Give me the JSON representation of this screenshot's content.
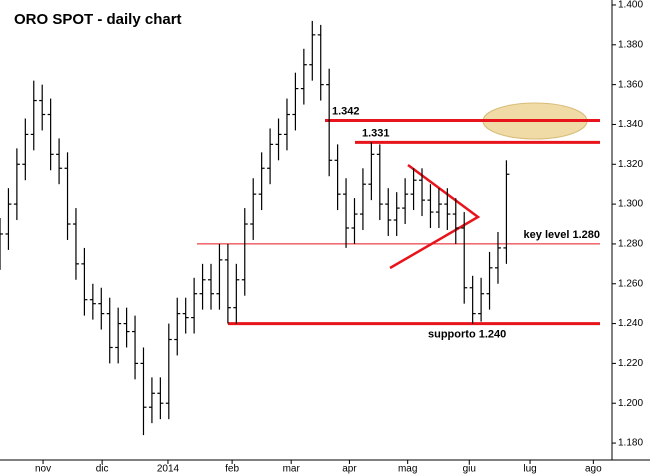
{
  "chart_data": {
    "type": "ohlc",
    "title": "ORO SPOT - daily chart",
    "color": "#000000",
    "x": [
      0,
      1,
      2,
      3,
      4,
      5,
      6,
      7,
      8,
      9,
      10,
      11,
      12,
      13,
      14,
      15,
      16,
      17,
      18,
      19,
      20,
      21,
      22,
      23,
      24,
      25,
      26,
      27,
      28,
      29,
      30,
      31,
      32,
      33,
      34,
      35,
      36,
      37,
      38,
      39,
      40,
      41,
      42,
      43,
      44,
      45,
      46,
      47,
      48,
      49,
      50,
      51,
      52,
      53,
      54,
      55,
      56,
      57,
      58,
      59,
      60
    ],
    "open": [
      1.275,
      1.285,
      1.3,
      1.32,
      1.335,
      1.352,
      1.345,
      1.325,
      1.318,
      1.29,
      1.27,
      1.252,
      1.25,
      1.245,
      1.228,
      1.24,
      1.236,
      1.22,
      1.198,
      1.205,
      1.2,
      1.232,
      1.245,
      1.243,
      1.255,
      1.262,
      1.255,
      1.272,
      1.248,
      1.262,
      1.29,
      1.305,
      1.318,
      1.33,
      1.335,
      1.345,
      1.358,
      1.37,
      1.385,
      1.36,
      1.322,
      1.305,
      1.288,
      1.295,
      1.31,
      1.325,
      1.3,
      1.292,
      1.298,
      1.305,
      1.312,
      1.302,
      1.296,
      1.3,
      1.295,
      1.288,
      1.258,
      1.245,
      1.255,
      1.268,
      1.278
    ],
    "high": [
      1.293,
      1.308,
      1.328,
      1.343,
      1.362,
      1.36,
      1.353,
      1.333,
      1.326,
      1.298,
      1.278,
      1.26,
      1.258,
      1.253,
      1.248,
      1.248,
      1.244,
      1.228,
      1.213,
      1.213,
      1.24,
      1.253,
      1.253,
      1.263,
      1.27,
      1.27,
      1.28,
      1.28,
      1.27,
      1.298,
      1.313,
      1.326,
      1.338,
      1.343,
      1.353,
      1.366,
      1.378,
      1.392,
      1.39,
      1.368,
      1.33,
      1.313,
      1.303,
      1.318,
      1.331,
      1.33,
      1.308,
      1.306,
      1.313,
      1.318,
      1.318,
      1.31,
      1.308,
      1.308,
      1.303,
      1.296,
      1.264,
      1.263,
      1.276,
      1.286,
      1.322
    ],
    "low": [
      1.267,
      1.277,
      1.292,
      1.312,
      1.327,
      1.337,
      1.317,
      1.31,
      1.282,
      1.262,
      1.244,
      1.242,
      1.237,
      1.22,
      1.22,
      1.228,
      1.212,
      1.184,
      1.19,
      1.192,
      1.192,
      1.224,
      1.235,
      1.235,
      1.247,
      1.247,
      1.247,
      1.24,
      1.24,
      1.254,
      1.282,
      1.297,
      1.31,
      1.322,
      1.327,
      1.337,
      1.35,
      1.362,
      1.352,
      1.314,
      1.297,
      1.278,
      1.28,
      1.287,
      1.302,
      1.292,
      1.284,
      1.284,
      1.29,
      1.297,
      1.294,
      1.288,
      1.288,
      1.287,
      1.28,
      1.25,
      1.24,
      1.241,
      1.247,
      1.26,
      1.27
    ],
    "close": [
      1.285,
      1.3,
      1.32,
      1.335,
      1.352,
      1.345,
      1.325,
      1.318,
      1.29,
      1.27,
      1.252,
      1.25,
      1.245,
      1.228,
      1.24,
      1.236,
      1.22,
      1.198,
      1.205,
      1.2,
      1.232,
      1.245,
      1.243,
      1.255,
      1.262,
      1.255,
      1.272,
      1.248,
      1.262,
      1.29,
      1.305,
      1.318,
      1.33,
      1.335,
      1.345,
      1.358,
      1.37,
      1.385,
      1.36,
      1.322,
      1.305,
      1.288,
      1.295,
      1.31,
      1.325,
      1.3,
      1.292,
      1.298,
      1.305,
      1.312,
      1.302,
      1.296,
      1.3,
      1.295,
      1.288,
      1.258,
      1.245,
      1.255,
      1.268,
      1.278,
      1.315
    ],
    "xlim": [
      0,
      72
    ],
    "xticks": [
      {
        "value": 5.1,
        "label": "nov"
      },
      {
        "value": 12.1,
        "label": "dic"
      },
      {
        "value": 19.9,
        "label": "2014"
      },
      {
        "value": 27.5,
        "label": "feb"
      },
      {
        "value": 34.5,
        "label": "mar"
      },
      {
        "value": 41.4,
        "label": "apr"
      },
      {
        "value": 48.3,
        "label": "mag"
      },
      {
        "value": 55.6,
        "label": "giu"
      },
      {
        "value": 62.8,
        "label": "lug"
      },
      {
        "value": 70.3,
        "label": "ago"
      }
    ],
    "ylim": [
      1.1725,
      1.4025
    ],
    "yticks": [
      {
        "value": 1.18,
        "label": "1.180"
      },
      {
        "value": 1.2,
        "label": "1.200"
      },
      {
        "value": 1.22,
        "label": "1.220"
      },
      {
        "value": 1.24,
        "label": "1.240"
      },
      {
        "value": 1.26,
        "label": "1.260"
      },
      {
        "value": 1.28,
        "label": "1.280"
      },
      {
        "value": 1.3,
        "label": "1.300"
      },
      {
        "value": 1.32,
        "label": "1.320"
      },
      {
        "value": 1.34,
        "label": "1.340"
      },
      {
        "value": 1.36,
        "label": "1.360"
      },
      {
        "value": 1.38,
        "label": "1.380"
      },
      {
        "value": 1.4,
        "label": "1.400"
      }
    ],
    "levels": [
      {
        "value": 1.342,
        "label": "1.342",
        "color": "#e8141c"
      },
      {
        "value": 1.331,
        "label": "1.331",
        "color": "#e8141c"
      },
      {
        "value": 1.28,
        "label": "key level 1.280",
        "color": "#e8141c"
      },
      {
        "value": 1.24,
        "label": "supporto 1.240",
        "color": "#e8141c"
      }
    ]
  }
}
